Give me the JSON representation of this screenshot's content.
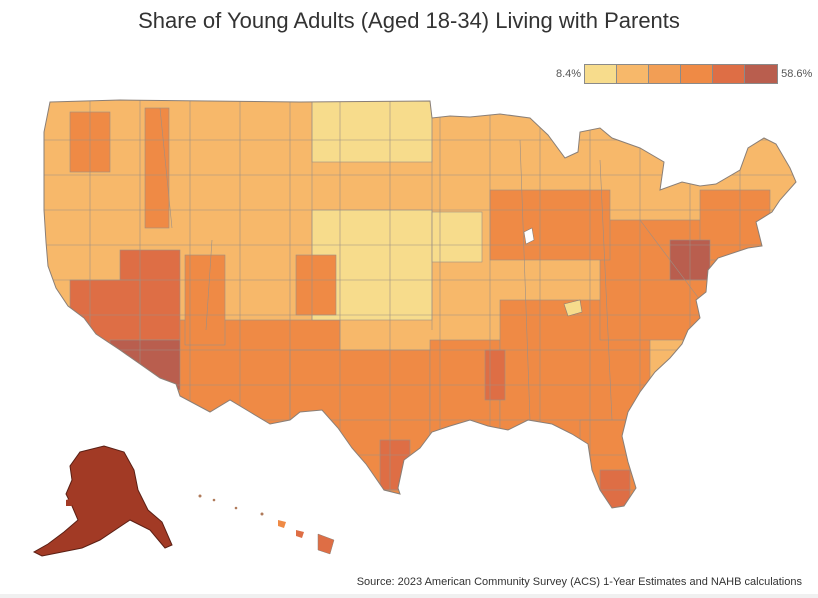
{
  "title": "Share of Young Adults (Aged 18-34) Living with Parents",
  "legend": {
    "min_label": "8.4%",
    "max_label": "58.6%",
    "colors": [
      "#f7dc8c",
      "#f7b86a",
      "#f29e55",
      "#ef8a45",
      "#de6e45",
      "#b95e4e"
    ]
  },
  "map": {
    "subject": "Share of young adults aged 18-34 living with parents, by area",
    "regions": [
      "contiguous-us",
      "alaska",
      "hawaii"
    ]
  },
  "source": "Source: 2023 American Community Survey (ACS) 1-Year Estimates and NAHB calculations"
}
